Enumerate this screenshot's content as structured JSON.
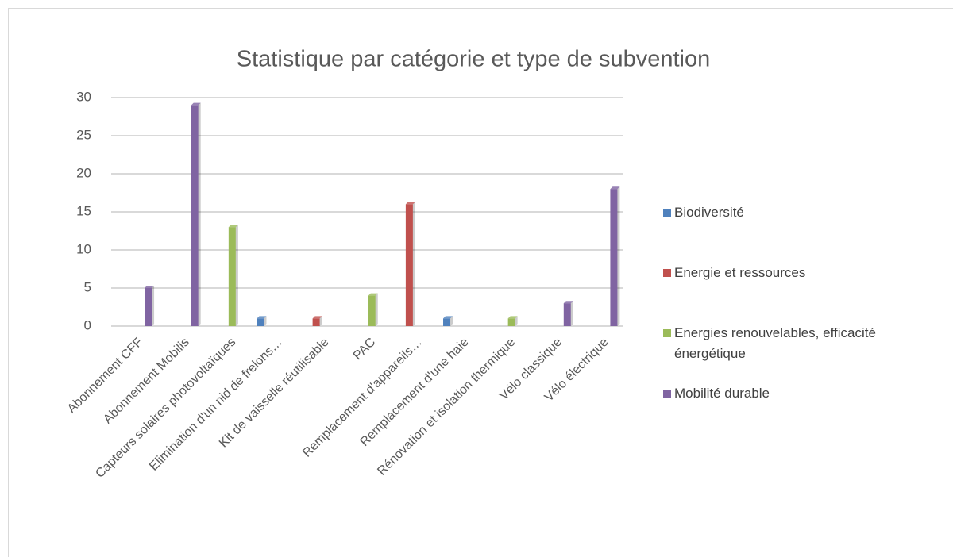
{
  "chart_data": {
    "type": "bar",
    "title": "Statistique par catégorie et type de subvention",
    "categories": [
      "Abonnement CFF",
      "Abonnement Mobilis",
      "Capteurs solaires photovoltaïques",
      "Elimination d'un nid de frelons…",
      "Kit de vaisselle réutilisable",
      "PAC",
      "Remplacement d'appareils…",
      "Remplacement d'une haie",
      "Rénovation et isolation thermique",
      "Vélo classique",
      "Vélo électrique"
    ],
    "series": [
      {
        "name": "Biodiversité",
        "color": "#4f81bd",
        "values": [
          null,
          null,
          null,
          1,
          null,
          null,
          null,
          1,
          null,
          null,
          null
        ]
      },
      {
        "name": "Energie et ressources",
        "color": "#c0504d",
        "values": [
          null,
          null,
          null,
          null,
          1,
          null,
          16,
          null,
          null,
          null,
          null
        ]
      },
      {
        "name": "Energies renouvelables, efficacité énergétique",
        "color": "#9bbb59",
        "values": [
          null,
          null,
          13,
          null,
          null,
          4,
          null,
          null,
          1,
          null,
          null
        ]
      },
      {
        "name": "Mobilité durable",
        "color": "#8064a2",
        "values": [
          5,
          29,
          null,
          null,
          null,
          null,
          null,
          null,
          null,
          3,
          18
        ]
      }
    ],
    "ylim": [
      0,
      30
    ],
    "yticks": [
      0,
      5,
      10,
      15,
      20,
      25,
      30
    ],
    "grid": true,
    "legend": "right"
  }
}
